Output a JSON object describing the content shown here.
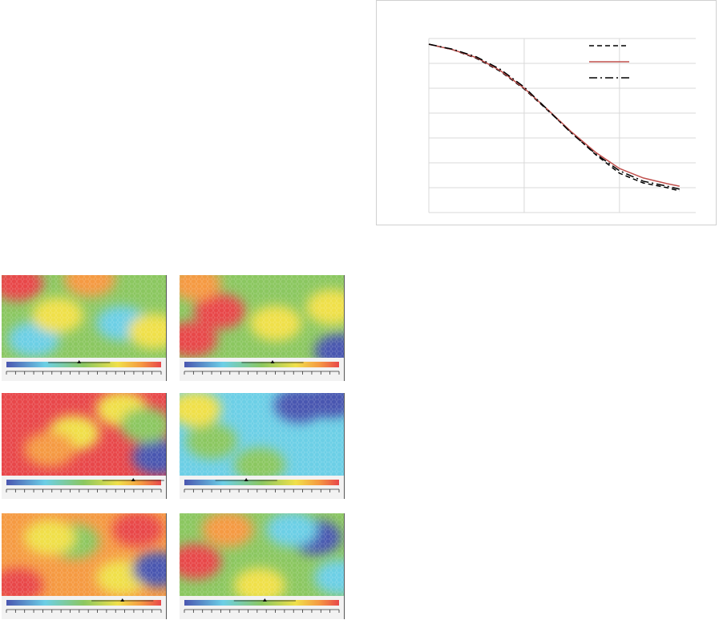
{
  "chart_data": {
    "type": "line",
    "x": [
      0,
      0.25,
      0.5,
      0.75,
      1,
      1.25,
      1.5,
      1.75,
      2,
      2.25,
      2.5,
      2.63
    ],
    "xlim": [
      0,
      2.8
    ],
    "xticks": [
      0,
      1,
      2
    ],
    "ylim": [
      0,
      7
    ],
    "yticks": [
      0,
      1,
      2,
      3,
      4,
      5,
      6,
      7
    ],
    "grid": true,
    "series": [
      {
        "color": "#000000",
        "dash": "dashed",
        "values": [
          6.77,
          6.55,
          6.2,
          5.68,
          4.97,
          4.1,
          3.2,
          2.33,
          1.58,
          1.19,
          1.0,
          0.87
        ]
      },
      {
        "color": "#c0504d",
        "dash": "solid",
        "values": [
          6.77,
          6.55,
          6.23,
          5.71,
          5.0,
          4.13,
          3.23,
          2.42,
          1.77,
          1.39,
          1.16,
          1.06
        ]
      },
      {
        "color": "#000000",
        "dash": "dashdot",
        "values": [
          6.77,
          6.57,
          6.26,
          5.76,
          5.05,
          4.12,
          3.18,
          2.36,
          1.68,
          1.26,
          1.06,
          0.94
        ]
      }
    ]
  }
}
